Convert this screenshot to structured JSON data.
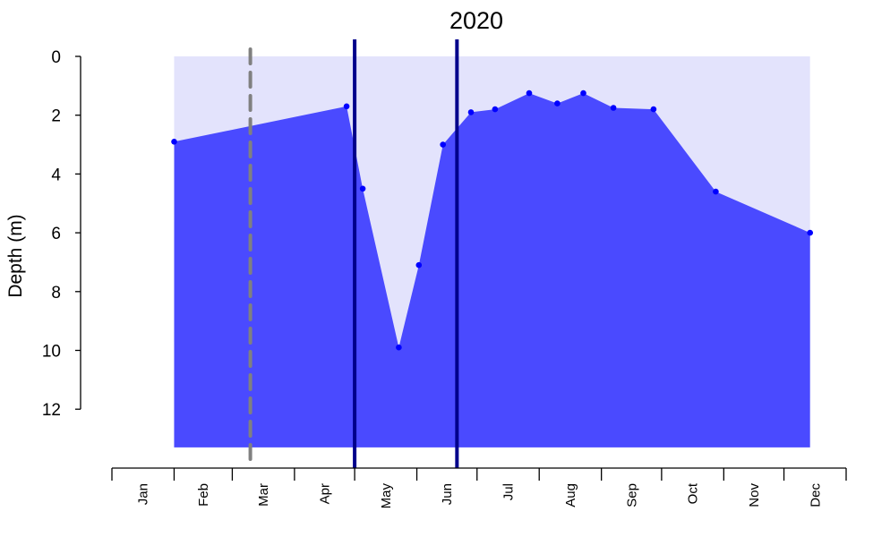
{
  "chart_data": {
    "type": "area",
    "title": "2020",
    "xlabel": "",
    "ylabel": "Depth (m)",
    "y_inverted": true,
    "ylim": [
      0,
      12
    ],
    "yticks": [
      0,
      2,
      4,
      6,
      8,
      10,
      12
    ],
    "x_range": [
      "2020-01-01",
      "2020-12-31"
    ],
    "month_labels": [
      "Jan",
      "Feb",
      "Mar",
      "Apr",
      "May",
      "Jun",
      "Jul",
      "Aug",
      "Sep",
      "Oct",
      "Nov",
      "Dec"
    ],
    "grid": false,
    "background_band": {
      "from_date": "2020-02-01",
      "to_date": "2020-12-14",
      "depth_from": 0,
      "depth_to": 13.3,
      "color": "#e3e3fc"
    },
    "series": [
      {
        "color": "#0000ff",
        "fill": "#4a4aff",
        "fill_bottom_depth": 13.3,
        "points": [
          {
            "x": "2020-02-01",
            "y": 2.9
          },
          {
            "x": "2020-04-27",
            "y": 1.7
          },
          {
            "x": "2020-05-05",
            "y": 4.5
          },
          {
            "x": "2020-05-23",
            "y": 9.9
          },
          {
            "x": "2020-06-02",
            "y": 7.1
          },
          {
            "x": "2020-06-14",
            "y": 3.0
          },
          {
            "x": "2020-06-28",
            "y": 1.9
          },
          {
            "x": "2020-07-10",
            "y": 1.8
          },
          {
            "x": "2020-07-27",
            "y": 1.25
          },
          {
            "x": "2020-08-10",
            "y": 1.6
          },
          {
            "x": "2020-08-23",
            "y": 1.25
          },
          {
            "x": "2020-09-07",
            "y": 1.75
          },
          {
            "x": "2020-09-27",
            "y": 1.8
          },
          {
            "x": "2020-10-28",
            "y": 4.6
          },
          {
            "x": "2020-12-14",
            "y": 6.0
          }
        ]
      }
    ],
    "vertical_lines": [
      {
        "x": "2020-03-10",
        "style": "dashed",
        "color": "#808080"
      },
      {
        "x": "2020-05-01",
        "style": "solid",
        "color": "#00008b"
      },
      {
        "x": "2020-06-21",
        "style": "solid",
        "color": "#00008b"
      }
    ]
  }
}
